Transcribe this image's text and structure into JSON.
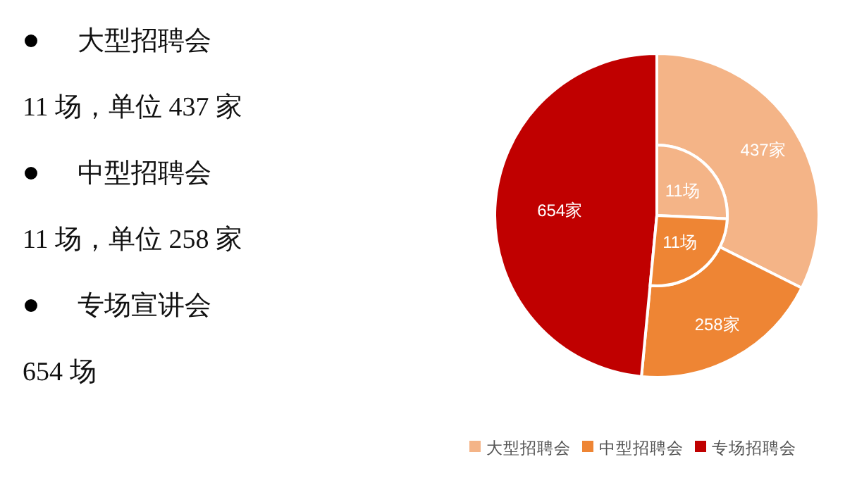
{
  "chart_data": [
    {
      "type": "other",
      "annotations": [
        "大型招聘会",
        "11 场，单位 437 家",
        "中型招聘会",
        "11 场，单位 258 家",
        "专场宣讲会",
        "654 场"
      ]
    },
    {
      "type": "pie",
      "categories": [
        "大型招聘会",
        "中型招聘会",
        "专场招聘会"
      ],
      "colors": [
        "#f4b487",
        "#ee8534",
        "#c00000"
      ],
      "legend": "bottom",
      "series": [
        {
          "values": [
            437,
            258,
            654
          ],
          "value_labels": [
            "437家",
            "258家",
            "654家"
          ]
        },
        {
          "values": [
            11,
            11,
            null
          ],
          "value_labels": [
            "11场",
            "11场",
            null
          ]
        }
      ]
    }
  ]
}
